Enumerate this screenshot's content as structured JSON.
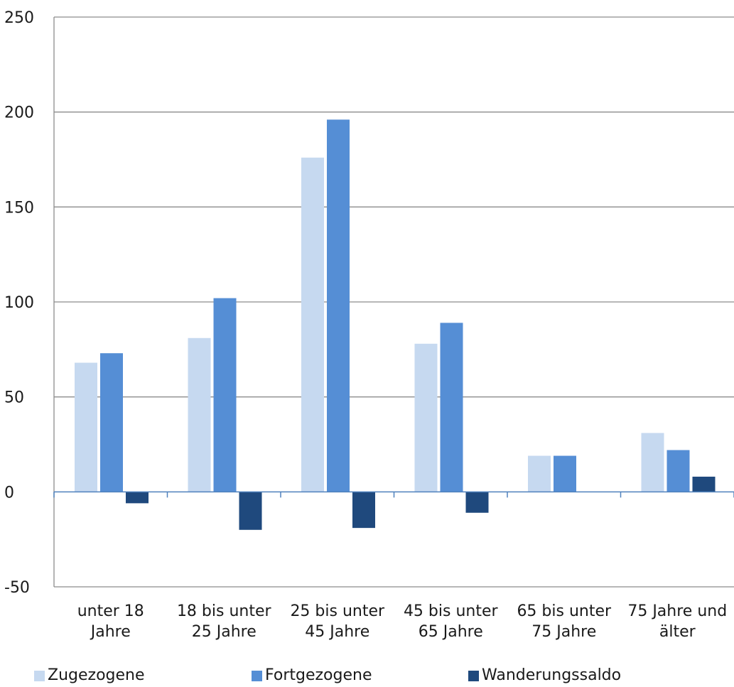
{
  "chart_data": {
    "type": "bar",
    "title": "",
    "xlabel": "",
    "ylabel": "",
    "ylim": [
      -50,
      250
    ],
    "yticks": [
      -50,
      0,
      50,
      100,
      150,
      200,
      250
    ],
    "grid": true,
    "legend_position": "bottom",
    "categories": [
      [
        "unter 18",
        "Jahre"
      ],
      [
        "18 bis unter",
        "25 Jahre"
      ],
      [
        "25 bis unter",
        "45 Jahre"
      ],
      [
        "45 bis unter",
        "65 Jahre"
      ],
      [
        "65 bis unter",
        "75 Jahre"
      ],
      [
        "75 Jahre und",
        "älter"
      ]
    ],
    "series": [
      {
        "name": "Zugezogene",
        "color": "#c6d9f0",
        "values": [
          68,
          81,
          176,
          78,
          19,
          31
        ]
      },
      {
        "name": "Fortgezogene",
        "color": "#558ed5",
        "values": [
          73,
          102,
          196,
          89,
          19,
          22
        ]
      },
      {
        "name": "Wanderungssaldo",
        "color": "#1f497d",
        "values": [
          -6,
          -20,
          -19,
          -11,
          0,
          8
        ]
      }
    ]
  }
}
